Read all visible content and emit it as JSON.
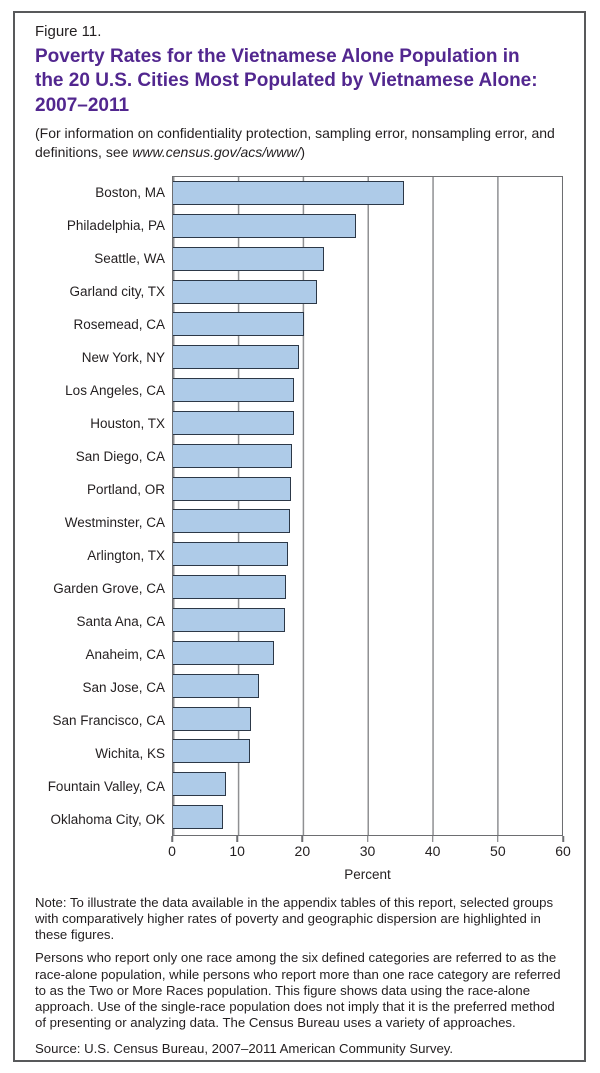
{
  "header": {
    "figure_label": "Figure 11.",
    "title": "Poverty Rates for the Vietnamese Alone Population in the 20 U.S. Cities Most Populated by Vietnamese Alone: 2007–2011",
    "subtitle_prefix": "(For information on confidentiality protection, sampling error, nonsampling error, and definitions, see ",
    "subtitle_link": "www.census.gov/acs/www/",
    "subtitle_suffix": ")"
  },
  "colors": {
    "title_purple": "#52278f",
    "bar_fill": "#aecbe8",
    "bar_border": "#2c3847",
    "gridline": "#8f9092",
    "frame_border": "#58595b",
    "text": "#231f20"
  },
  "chart_data": {
    "type": "bar",
    "orientation": "horizontal",
    "title": "Poverty Rates for the Vietnamese Alone Population in the 20 U.S. Cities Most Populated by Vietnamese Alone: 2007–2011",
    "categories": [
      "Boston, MA",
      "Philadelphia, PA",
      "Seattle, WA",
      "Garland city, TX",
      "Rosemead, CA",
      "New York, NY",
      "Los Angeles, CA",
      "Houston, TX",
      "San Diego, CA",
      "Portland, OR",
      "Westminster, CA",
      "Arlington, TX",
      "Garden Grove, CA",
      "Santa Ana, CA",
      "Anaheim, CA",
      "San Jose, CA",
      "San Francisco, CA",
      "Wichita, KS",
      "Fountain Valley, CA",
      "Oklahoma City, OK"
    ],
    "values": [
      35.6,
      28.3,
      23.3,
      22.2,
      20.2,
      19.4,
      18.7,
      18.6,
      18.3,
      18.2,
      18.1,
      17.8,
      17.4,
      17.2,
      15.6,
      13.3,
      12.0,
      11.8,
      8.2,
      7.7
    ],
    "xlabel": "Percent",
    "ylabel": "",
    "xlim": [
      0,
      60
    ],
    "xticks": [
      0,
      10,
      20,
      30,
      40,
      50,
      60
    ],
    "grid": true,
    "legend": "none"
  },
  "notes": {
    "note1": "Note: To illustrate the data available in the appendix tables of this report, selected groups with comparatively higher rates of poverty and geographic dispersion are highlighted in these figures.",
    "note2": "Persons who report only one race among the six defined categories are referred to as the race-alone population, while persons who report more than one race category are referred to as the Two or More Races population. This figure shows data using the race-alone approach. Use of the single-race population does not imply that it is the preferred method of presenting or analyzing data. The Census Bureau uses a variety of approaches.",
    "source": "Source: U.S. Census Bureau, 2007–2011 American Community Survey."
  }
}
